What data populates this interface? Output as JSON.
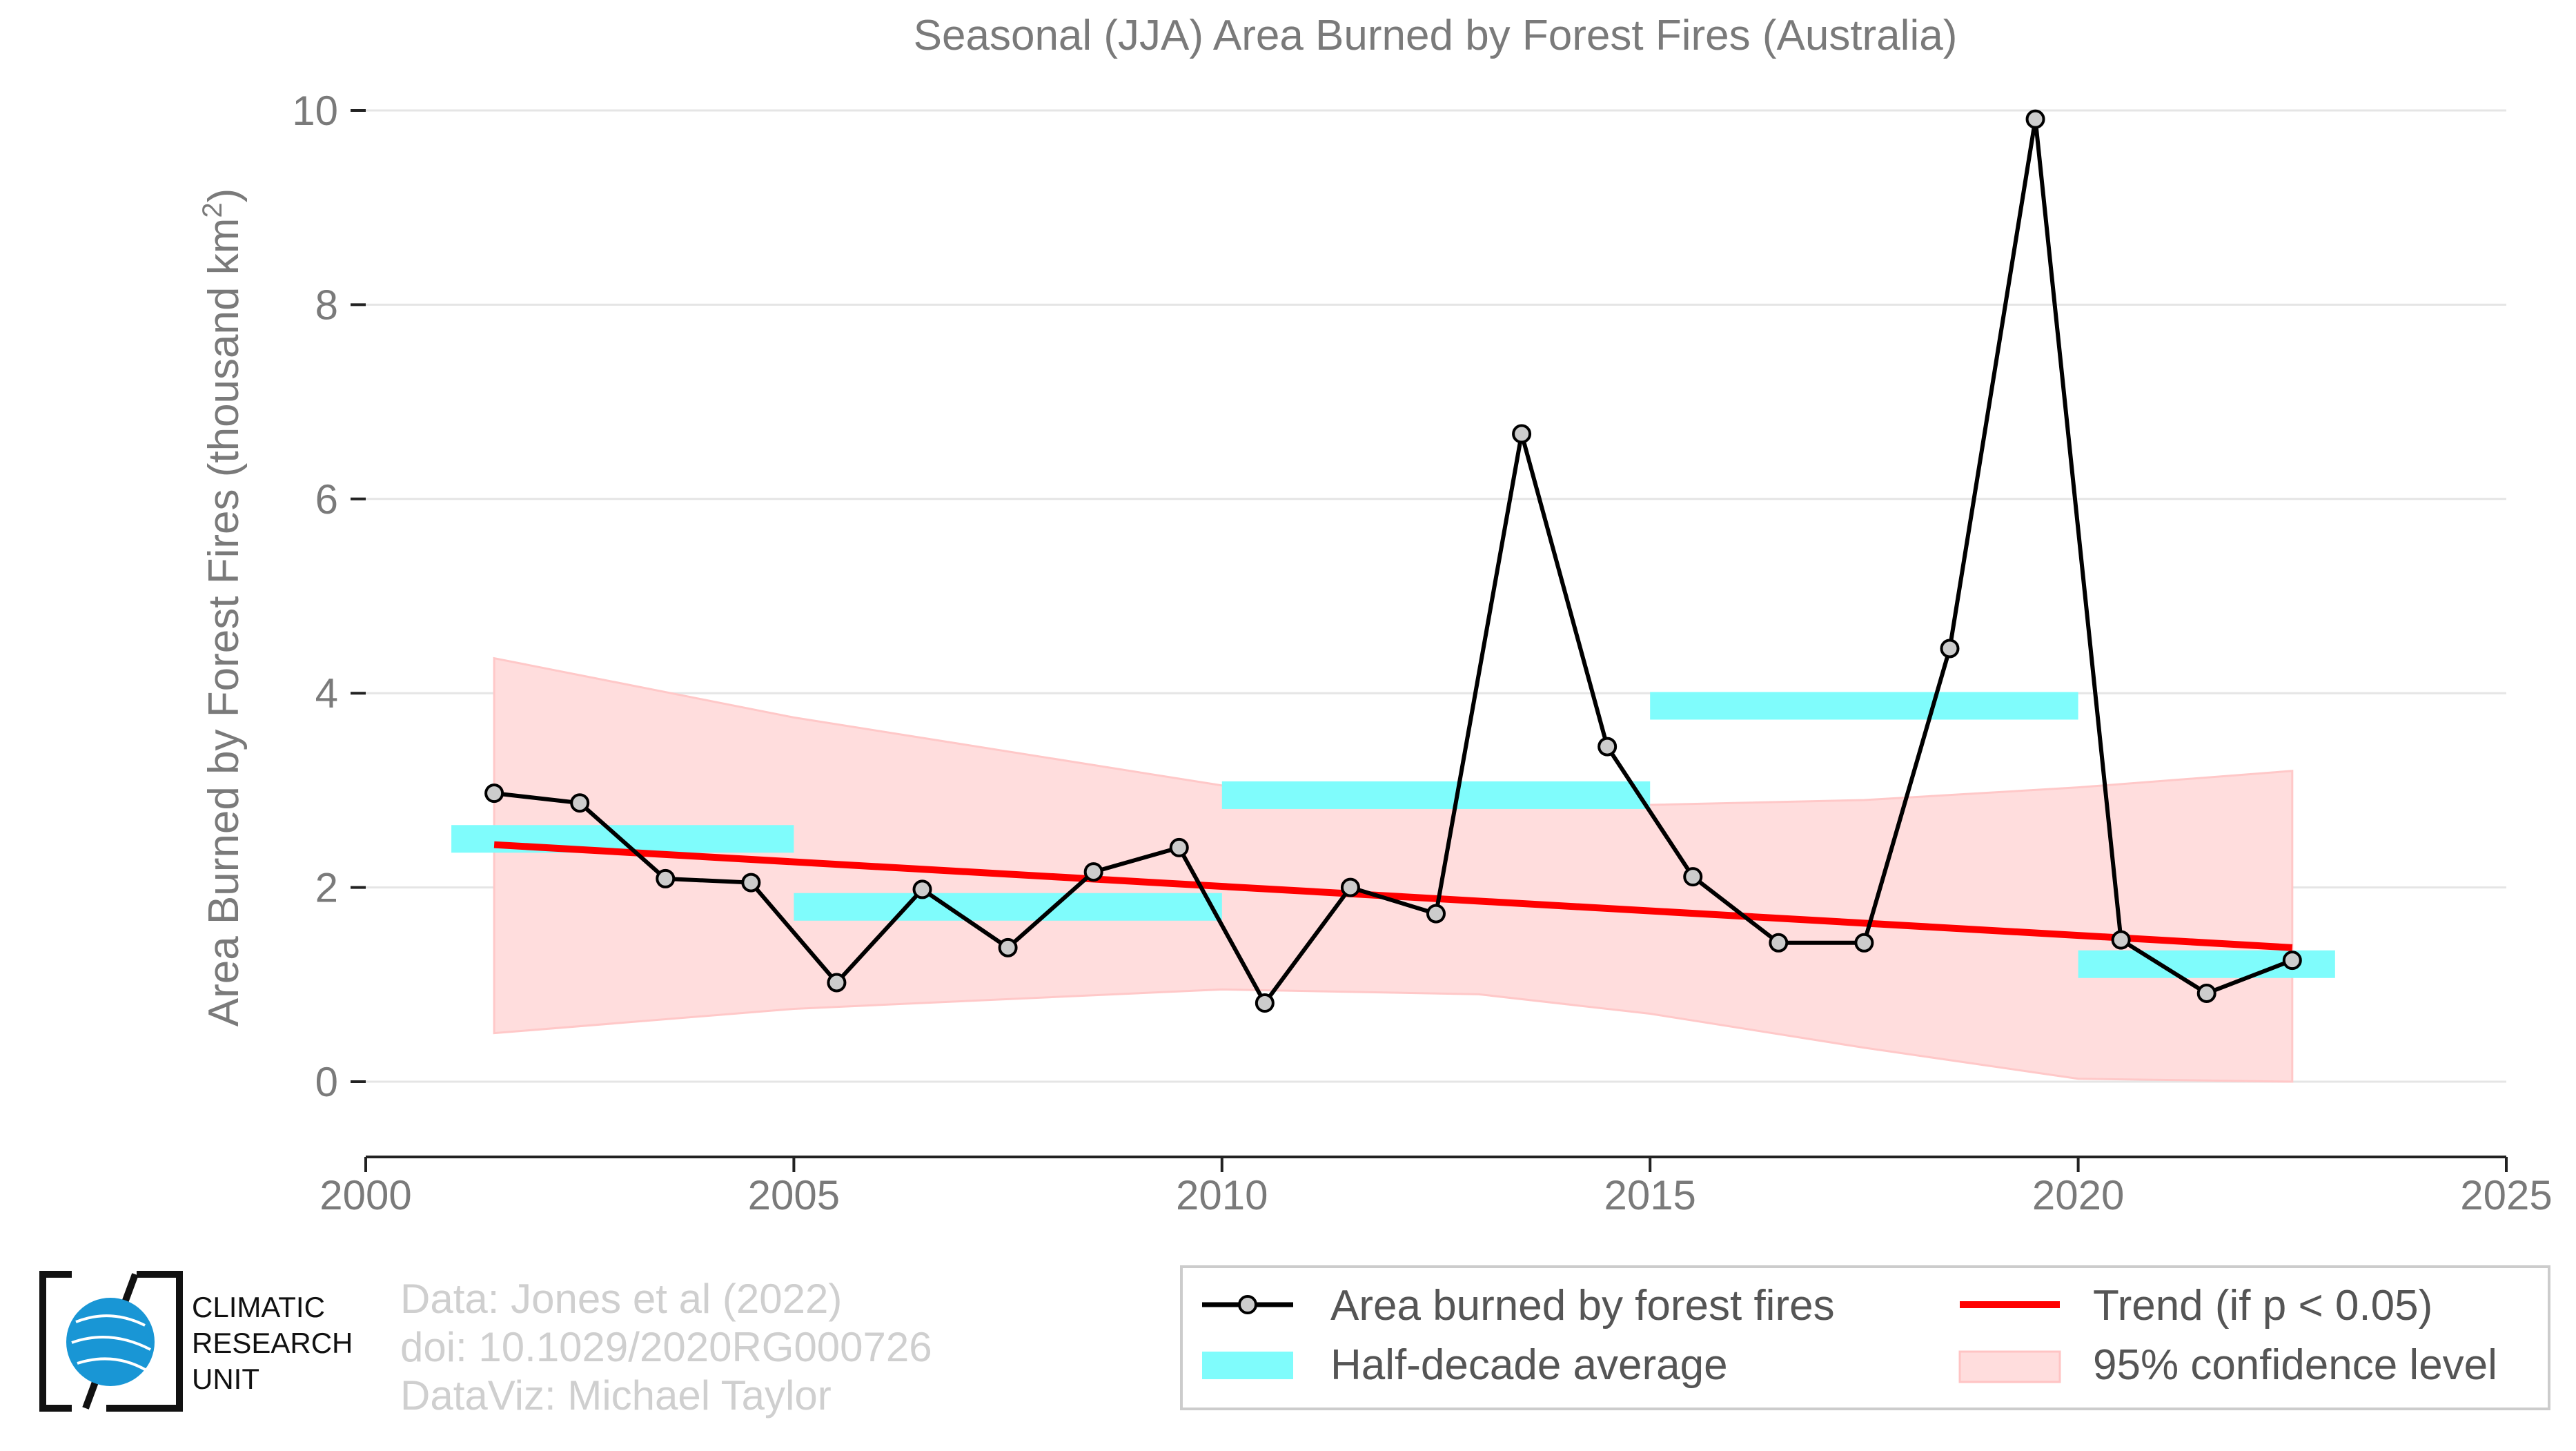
{
  "chart_data": {
    "type": "line",
    "title": "Seasonal (JJA) Area Burned by Forest Fires (Australia)",
    "ylabel_main": "Area Burned by Forest Fires (thousand km",
    "ylabel_sup": "2",
    "ylabel_end": ")",
    "xlabel": "",
    "xlim": [
      2000,
      2025
    ],
    "ylim": [
      0,
      10
    ],
    "xticks": [
      2000,
      2005,
      2010,
      2015,
      2020,
      2025
    ],
    "yticks": [
      0,
      2,
      4,
      6,
      8,
      10
    ],
    "grid": "horizontal",
    "legend_position": "bottom-right",
    "series": [
      {
        "name": "Area burned by forest fires",
        "color": "#000000",
        "marker_fill": "#cccccc",
        "x": [
          2001.5,
          2002.5,
          2003.5,
          2004.5,
          2005.5,
          2006.5,
          2007.5,
          2008.5,
          2009.5,
          2010.5,
          2011.5,
          2012.5,
          2013.5,
          2014.5,
          2015.5,
          2016.5,
          2017.5,
          2018.5,
          2019.5,
          2020.5,
          2021.5,
          2022.5
        ],
        "y": [
          2.97,
          2.87,
          2.09,
          2.05,
          1.02,
          1.98,
          1.38,
          2.16,
          2.41,
          0.81,
          2.0,
          1.73,
          6.67,
          3.45,
          2.11,
          1.43,
          1.43,
          4.46,
          9.91,
          1.46,
          0.91,
          1.25
        ]
      }
    ],
    "half_decade_average": {
      "name": "Half-decade average",
      "color": "#7ffcfc",
      "segments": [
        {
          "x0": 2001,
          "x1": 2005,
          "y": 2.5
        },
        {
          "x0": 2005,
          "x1": 2010,
          "y": 1.8
        },
        {
          "x0": 2010,
          "x1": 2015,
          "y": 2.95
        },
        {
          "x0": 2015,
          "x1": 2020,
          "y": 3.87
        },
        {
          "x0": 2020,
          "x1": 2023,
          "y": 1.21
        }
      ]
    },
    "trend": {
      "name": "Trend (if p < 0.05)",
      "color": "#ff0000",
      "x": [
        2001.5,
        2022.5
      ],
      "y": [
        2.44,
        1.38
      ]
    },
    "confidence": {
      "name": "95% confidence level",
      "color": "#ffdddd",
      "x": [
        2001.5,
        2005,
        2010,
        2013,
        2015,
        2017.5,
        2020,
        2022.5
      ],
      "upper": [
        4.36,
        3.75,
        3.05,
        2.9,
        2.85,
        2.9,
        3.03,
        3.2
      ],
      "lower": [
        0.5,
        0.75,
        0.95,
        0.9,
        0.7,
        0.35,
        0.03,
        0.0
      ]
    }
  },
  "credits": {
    "line1": "Data: Jones et al (2022)",
    "line2": "doi: 10.1029/2020RG000726",
    "line3": "DataViz: Michael Taylor"
  },
  "logo": {
    "line1": "CLIMATIC",
    "line2": "RESEARCH",
    "line3": "UNIT"
  }
}
